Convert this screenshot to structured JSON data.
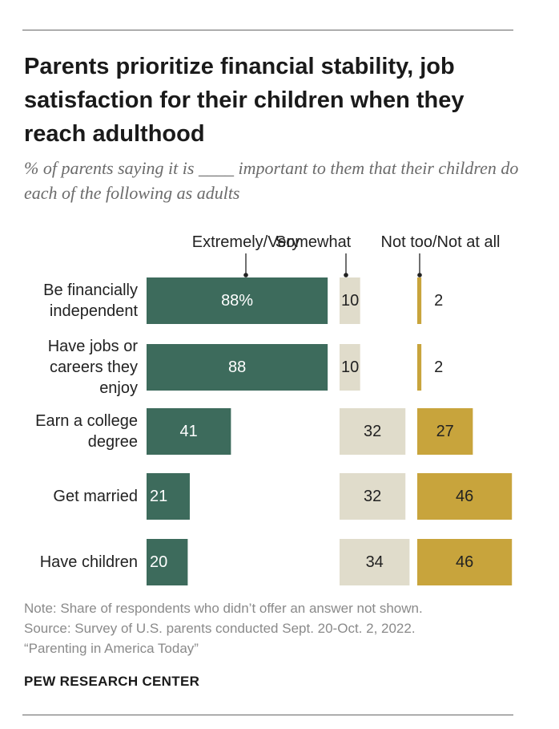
{
  "title": "Parents prioritize financial stability, job satisfaction for their children when they reach adulthood",
  "subtitle": "% of parents saying it is ____ important to them that their children do each of the following as adults",
  "note_lines": [
    "Note: Share of respondents who didn’t offer an answer not shown.",
    "Source: Survey of U.S. parents conducted Sept. 20-Oct. 2, 2022.",
    "“Parenting in America Today”"
  ],
  "brand": "PEW RESEARCH CENTER",
  "chart_data": {
    "type": "bar",
    "orientation": "horizontal",
    "stacked_layout": "diverging-columns",
    "categories": [
      [
        "Be financially",
        "independent"
      ],
      [
        "Have jobs or",
        "careers they",
        "enjoy"
      ],
      [
        "Earn a college",
        "degree"
      ],
      [
        "Get married"
      ],
      [
        "Have children"
      ]
    ],
    "series": [
      {
        "name": "Extremely/Very",
        "color": "#3d6b5c",
        "text_color": "#ffffff",
        "values": [
          88,
          88,
          41,
          21,
          20
        ],
        "labels": [
          "88%",
          "88",
          "41",
          "21",
          "20"
        ]
      },
      {
        "name": "Somewhat",
        "color": "#e0dccb",
        "text_color": "#222222",
        "values": [
          10,
          10,
          32,
          32,
          34
        ],
        "labels": [
          "10",
          "10",
          "32",
          "32",
          "34"
        ]
      },
      {
        "name": "Not too/Not at all",
        "color": "#c8a43c",
        "text_color": "#222222",
        "values": [
          2,
          2,
          27,
          46,
          46
        ],
        "labels": [
          "2",
          "2",
          "27",
          "46",
          "46"
        ]
      }
    ],
    "unit": "%",
    "legend": "top"
  }
}
